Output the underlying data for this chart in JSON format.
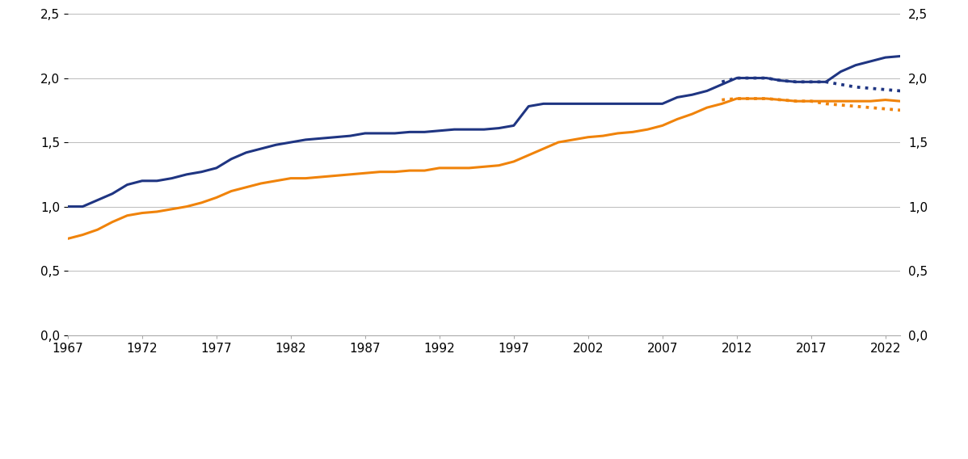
{
  "mp_enslig_years": [
    1967,
    1968,
    1969,
    1970,
    1971,
    1972,
    1973,
    1974,
    1975,
    1976,
    1977,
    1978,
    1979,
    1980,
    1981,
    1982,
    1983,
    1984,
    1985,
    1986,
    1987,
    1988,
    1989,
    1990,
    1991,
    1992,
    1993,
    1994,
    1995,
    1996,
    1997,
    1998,
    1999,
    2000,
    2001,
    2002,
    2003,
    2004,
    2005,
    2006,
    2007,
    2008,
    2009,
    2010,
    2011,
    2012,
    2013,
    2014,
    2015,
    2016,
    2017,
    2018,
    2019,
    2020,
    2021,
    2022,
    2023
  ],
  "mp_enslig_vals": [
    1.0,
    1.0,
    1.05,
    1.1,
    1.17,
    1.2,
    1.2,
    1.22,
    1.25,
    1.27,
    1.3,
    1.37,
    1.42,
    1.45,
    1.48,
    1.5,
    1.52,
    1.53,
    1.54,
    1.55,
    1.57,
    1.57,
    1.57,
    1.58,
    1.58,
    1.59,
    1.6,
    1.6,
    1.6,
    1.61,
    1.63,
    1.78,
    1.8,
    1.8,
    1.8,
    1.8,
    1.8,
    1.8,
    1.8,
    1.8,
    1.8,
    1.85,
    1.87,
    1.9,
    1.95,
    2.0,
    2.0,
    2.0,
    1.98,
    1.97,
    1.97,
    1.97,
    2.05,
    2.1,
    2.13,
    2.16,
    2.17
  ],
  "mp_gift_years": [
    1967,
    1968,
    1969,
    1970,
    1971,
    1972,
    1973,
    1974,
    1975,
    1976,
    1977,
    1978,
    1979,
    1980,
    1981,
    1982,
    1983,
    1984,
    1985,
    1986,
    1987,
    1988,
    1989,
    1990,
    1991,
    1992,
    1993,
    1994,
    1995,
    1996,
    1997,
    1998,
    1999,
    2000,
    2001,
    2002,
    2003,
    2004,
    2005,
    2006,
    2007,
    2008,
    2009,
    2010,
    2011,
    2012,
    2013,
    2014,
    2015,
    2016,
    2017,
    2018,
    2019,
    2020,
    2021,
    2022,
    2023
  ],
  "mp_gift_vals": [
    0.75,
    0.78,
    0.82,
    0.88,
    0.93,
    0.95,
    0.96,
    0.98,
    1.0,
    1.03,
    1.07,
    1.12,
    1.15,
    1.18,
    1.2,
    1.22,
    1.22,
    1.23,
    1.24,
    1.25,
    1.26,
    1.27,
    1.27,
    1.28,
    1.28,
    1.3,
    1.3,
    1.3,
    1.31,
    1.32,
    1.35,
    1.4,
    1.45,
    1.5,
    1.52,
    1.54,
    1.55,
    1.57,
    1.58,
    1.6,
    1.63,
    1.68,
    1.72,
    1.77,
    1.8,
    1.84,
    1.84,
    1.84,
    1.83,
    1.82,
    1.82,
    1.82,
    1.82,
    1.82,
    1.82,
    1.83,
    1.82
  ],
  "gp_enslig_years": [
    2011,
    2012,
    2013,
    2014,
    2015,
    2016,
    2017,
    2018,
    2019,
    2020,
    2021,
    2022,
    2023
  ],
  "gp_enslig_vals": [
    1.97,
    2.0,
    2.0,
    2.0,
    1.98,
    1.97,
    1.97,
    1.97,
    1.95,
    1.93,
    1.92,
    1.91,
    1.9
  ],
  "gp_gift_years": [
    2011,
    2012,
    2013,
    2014,
    2015,
    2016,
    2017,
    2018,
    2019,
    2020,
    2021,
    2022,
    2023
  ],
  "gp_gift_vals": [
    1.83,
    1.84,
    1.84,
    1.84,
    1.83,
    1.82,
    1.82,
    1.8,
    1.79,
    1.78,
    1.77,
    1.76,
    1.75
  ],
  "mp_enslig_color": "#1f3582",
  "mp_gift_color": "#f0830a",
  "gp_enslig_color": "#1f3582",
  "gp_gift_color": "#f0830a",
  "ylim": [
    0.0,
    2.5
  ],
  "yticks": [
    0.0,
    0.5,
    1.0,
    1.5,
    2.0,
    2.5
  ],
  "ytick_labels": [
    "0,0",
    "0,5",
    "1,0",
    "1,5",
    "2,0",
    "2,5"
  ],
  "xlim": [
    1967,
    2023
  ],
  "xticks": [
    1967,
    1972,
    1977,
    1982,
    1987,
    1992,
    1997,
    2002,
    2007,
    2012,
    2017,
    2022
  ],
  "grid_color": "#bbbbbb",
  "line_width": 2.2
}
